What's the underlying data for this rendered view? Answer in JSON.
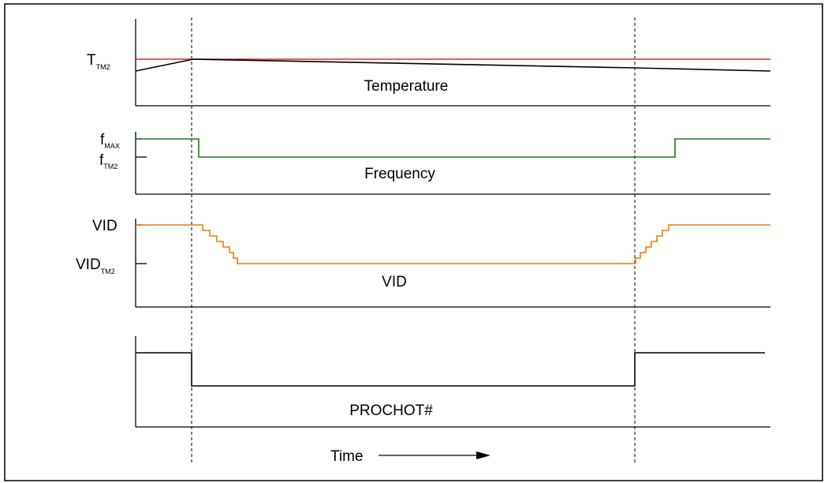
{
  "colors": {
    "threshold": "#d03030",
    "temperature": "#000000",
    "frequency": "#1a7a1a",
    "vid": "#f07a10",
    "prochot": "#000000"
  },
  "panels": {
    "temperature": {
      "caption": "Temperature",
      "y_label": {
        "main": "T",
        "sub": "TM2"
      }
    },
    "frequency": {
      "caption": "Frequency",
      "y_labels": [
        {
          "main": "f",
          "sub": "MAX"
        },
        {
          "main": "f",
          "sub": "TM2"
        }
      ]
    },
    "vid": {
      "caption": "VID",
      "y_labels": [
        {
          "main": "VID",
          "sub": ""
        },
        {
          "main": "VID",
          "sub": "TM2"
        }
      ]
    },
    "prochot": {
      "caption": "PROCHOT#"
    }
  },
  "time_label": "Time"
}
